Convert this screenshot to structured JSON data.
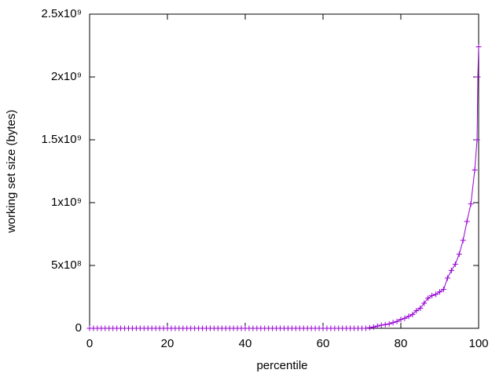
{
  "chart_data": {
    "type": "line",
    "x_label": "percentile",
    "y_label": "working set size (bytes)",
    "color": "#9400d3",
    "x": [
      0,
      1,
      2,
      3,
      4,
      5,
      6,
      7,
      8,
      9,
      10,
      11,
      12,
      13,
      14,
      15,
      16,
      17,
      18,
      19,
      20,
      21,
      22,
      23,
      24,
      25,
      26,
      27,
      28,
      29,
      30,
      31,
      32,
      33,
      34,
      35,
      36,
      37,
      38,
      39,
      40,
      41,
      42,
      43,
      44,
      45,
      46,
      47,
      48,
      49,
      50,
      51,
      52,
      53,
      54,
      55,
      56,
      57,
      58,
      59,
      60,
      61,
      62,
      63,
      64,
      65,
      66,
      67,
      68,
      69,
      70,
      71,
      72,
      73,
      74,
      75,
      76,
      77,
      78,
      79,
      80,
      81,
      82,
      83,
      84,
      85,
      86,
      87,
      88,
      89,
      90,
      91,
      92,
      93,
      94,
      95,
      96,
      97,
      98,
      99,
      99.6,
      99.8,
      100
    ],
    "values": [
      0,
      0,
      0,
      0,
      0,
      0,
      0,
      0,
      0,
      0,
      0,
      0,
      0,
      0,
      0,
      0,
      0,
      0,
      0,
      0,
      0,
      0,
      0,
      0,
      0,
      0,
      0,
      0,
      0,
      0,
      0,
      0,
      0,
      0,
      0,
      0,
      0,
      0,
      0,
      0,
      0,
      0,
      0,
      0,
      0,
      0,
      0,
      0,
      0,
      0,
      0,
      0,
      0,
      0,
      0,
      0,
      0,
      0,
      0,
      0,
      0,
      0,
      0,
      0,
      0,
      0,
      0,
      0,
      0,
      0,
      0,
      0,
      5000000,
      10000000,
      18000000,
      25000000,
      30000000,
      35000000,
      45000000,
      55000000,
      70000000,
      80000000,
      95000000,
      110000000,
      140000000,
      160000000,
      200000000,
      240000000,
      260000000,
      270000000,
      290000000,
      310000000,
      400000000,
      460000000,
      510000000,
      590000000,
      700000000,
      850000000,
      990000000,
      1260000000,
      1500000000,
      2000000000,
      2240000000
    ],
    "xlim": [
      0,
      100
    ],
    "ylim": [
      0,
      2500000000
    ],
    "xticks": [
      0,
      20,
      40,
      60,
      80,
      100
    ],
    "yticks": [
      0,
      {
        "value": 500000000,
        "label": "5x10⁸"
      },
      {
        "value": 1000000000,
        "label": "1x10⁹"
      },
      {
        "value": 1500000000,
        "label": "1.5x10⁹"
      },
      {
        "value": 2000000000,
        "label": "2x10⁹"
      },
      {
        "value": 2500000000,
        "label": "2.5x10⁹"
      }
    ]
  }
}
